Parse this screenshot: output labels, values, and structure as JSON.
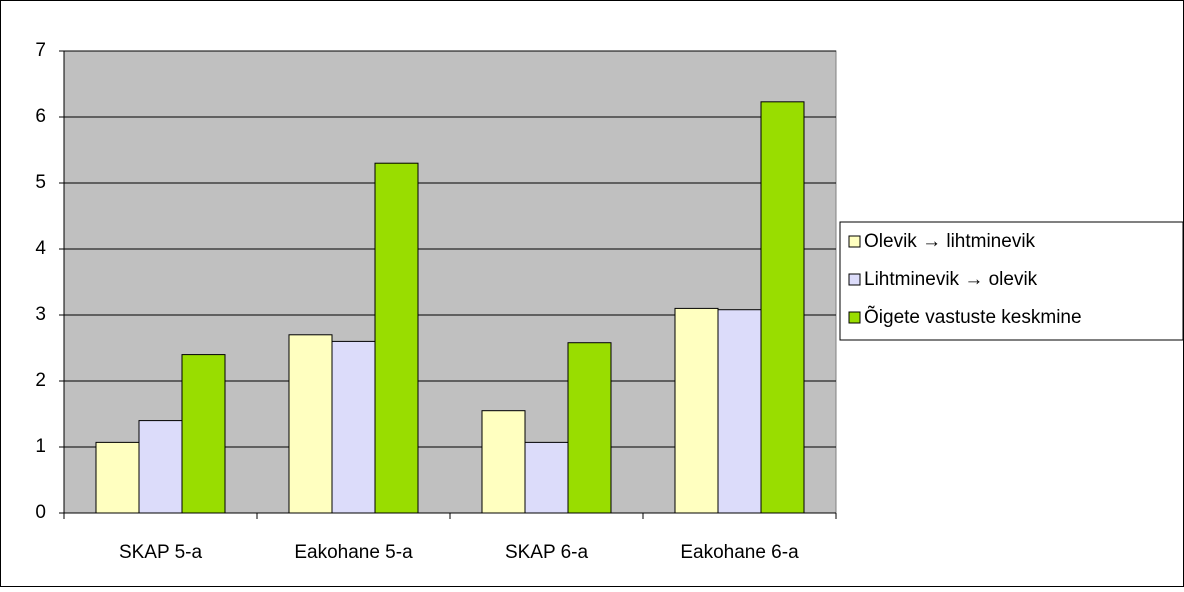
{
  "chart_data": {
    "type": "bar",
    "categories": [
      "SKAP 5-a",
      "Eakohane 5-a",
      "SKAP 6-a",
      "Eakohane 6-a"
    ],
    "series": [
      {
        "name": "Olevik → lihtminevik",
        "color": "#ffffc0",
        "values": [
          1.07,
          2.7,
          1.55,
          3.1
        ]
      },
      {
        "name": "Lihtminevik → olevik",
        "color": "#dcdcfa",
        "values": [
          1.4,
          2.6,
          1.07,
          3.08
        ]
      },
      {
        "name": "Õigete vastuste keskmine",
        "color": "#99dd00",
        "values": [
          2.4,
          5.3,
          2.58,
          6.23
        ]
      }
    ],
    "ylim": [
      0,
      7
    ],
    "yticks": [
      0,
      1,
      2,
      3,
      4,
      5,
      6,
      7
    ],
    "grid": true,
    "legend": "right"
  }
}
